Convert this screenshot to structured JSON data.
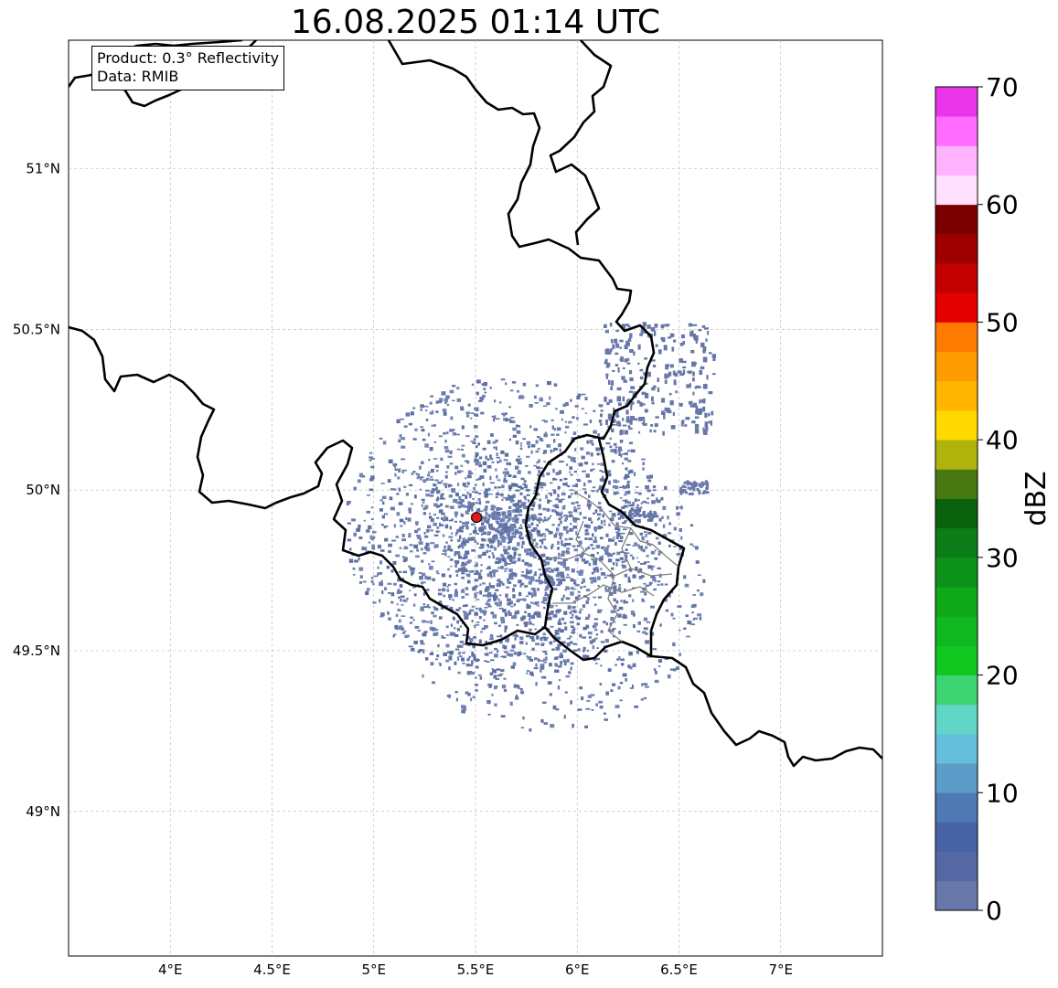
{
  "title": "16.08.2025 01:14 UTC",
  "info_box": {
    "product": "Product: 0.3° Reflectivity",
    "data": "Data: RMIB"
  },
  "map": {
    "lon_range": [
      3.5,
      7.5
    ],
    "lat_range": [
      48.55,
      51.4
    ],
    "lon_ticks": [
      {
        "value": 4.0,
        "label": "4°E"
      },
      {
        "value": 4.5,
        "label": "4.5°E"
      },
      {
        "value": 5.0,
        "label": "5°E"
      },
      {
        "value": 5.5,
        "label": "5.5°E"
      },
      {
        "value": 6.0,
        "label": "6°E"
      },
      {
        "value": 6.5,
        "label": "6.5°E"
      },
      {
        "value": 7.0,
        "label": "7°E"
      }
    ],
    "lat_ticks": [
      {
        "value": 49.0,
        "label": "49°N"
      },
      {
        "value": 49.5,
        "label": "49.5°N"
      },
      {
        "value": 50.0,
        "label": "50°N"
      },
      {
        "value": 50.5,
        "label": "50.5°N"
      },
      {
        "value": 51.0,
        "label": "51°N"
      }
    ],
    "radar_site": {
      "lon": 5.505,
      "lat": 49.915,
      "color": "#e31a1c"
    },
    "border_color": "#000000",
    "province_color": "#808080",
    "grid": true
  },
  "colorbar": {
    "label": "dBZ",
    "min": 0,
    "max": 70,
    "tick_values": [
      0,
      10,
      20,
      30,
      40,
      50,
      60,
      70
    ],
    "tick_labels": [
      "0",
      "10",
      "20",
      "30",
      "40",
      "50",
      "60",
      "70"
    ],
    "colors": [
      "#6777aa",
      "#5568a3",
      "#4762a5",
      "#4f79b3",
      "#5b9cc8",
      "#64bfdc",
      "#61d6c7",
      "#3dd473",
      "#10c81f",
      "#0fb820",
      "#0fa818",
      "#0d921a",
      "#0c7c16",
      "#0a620f",
      "#477811",
      "#aeb40b",
      "#ffd800",
      "#ffb500",
      "#ff9c00",
      "#ff7b00",
      "#e50000",
      "#c20000",
      "#9e0000",
      "#7a0000",
      "#ffe0ff",
      "#ffb2ff",
      "#ff6cff",
      "#ea36ea"
    ]
  }
}
